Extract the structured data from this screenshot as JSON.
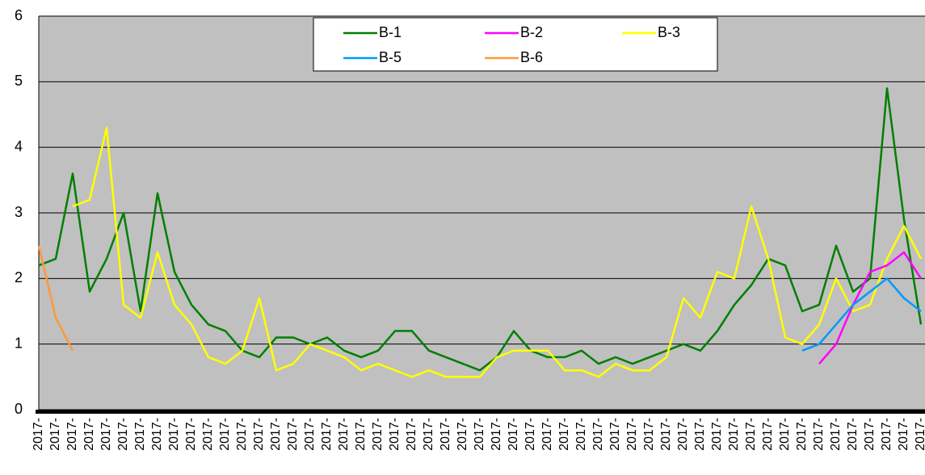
{
  "chart_data": {
    "type": "line",
    "categories": [
      "2017-",
      "2017-",
      "2017-",
      "2017-",
      "2017-",
      "2017-",
      "2017-",
      "2017-",
      "2017-",
      "2017-",
      "2017-",
      "2017-",
      "2017-",
      "2017-",
      "2017-",
      "2017-",
      "2017-",
      "2017-",
      "2017-",
      "2017-",
      "2017-",
      "2017-",
      "2017-",
      "2017-",
      "2017-",
      "2017-",
      "2017-",
      "2017-",
      "2017-",
      "2017-",
      "2017-",
      "2017-",
      "2017-",
      "2017-",
      "2017-",
      "2017-",
      "2017-",
      "2017-",
      "2017-",
      "2017-",
      "2017-",
      "2017-",
      "2017-",
      "2017-",
      "2017-",
      "2017-",
      "2017-",
      "2017-",
      "2017-",
      "2017-",
      "2017-",
      "2017-",
      "2017-"
    ],
    "series": [
      {
        "name": "B-1",
        "color": "#007f00",
        "values": [
          2.2,
          2.3,
          3.6,
          1.8,
          2.3,
          3.0,
          1.5,
          3.3,
          2.1,
          1.6,
          1.3,
          1.2,
          0.9,
          0.8,
          1.1,
          1.1,
          1.0,
          1.1,
          0.9,
          0.8,
          0.9,
          1.2,
          1.2,
          0.9,
          0.8,
          0.7,
          0.6,
          0.8,
          1.2,
          0.9,
          0.8,
          0.8,
          0.9,
          0.7,
          0.8,
          0.7,
          0.8,
          0.9,
          1.0,
          0.9,
          1.2,
          1.6,
          1.9,
          2.3,
          2.2,
          1.5,
          1.6,
          2.5,
          1.8,
          2.0,
          4.9,
          2.9,
          1.3
        ]
      },
      {
        "name": "B-2",
        "color": "#ff00ff",
        "values": [
          null,
          null,
          null,
          null,
          null,
          null,
          null,
          null,
          null,
          null,
          null,
          null,
          null,
          null,
          null,
          null,
          null,
          null,
          null,
          null,
          null,
          null,
          null,
          null,
          null,
          null,
          null,
          null,
          null,
          null,
          null,
          null,
          null,
          null,
          null,
          null,
          null,
          null,
          null,
          null,
          null,
          null,
          null,
          null,
          null,
          null,
          0.7,
          1.0,
          1.6,
          2.1,
          2.2,
          2.4,
          2.0
        ]
      },
      {
        "name": "B-3",
        "color": "#ffff00",
        "values": [
          null,
          null,
          3.1,
          3.2,
          4.3,
          1.6,
          1.4,
          2.4,
          1.6,
          1.3,
          0.8,
          0.7,
          0.9,
          1.7,
          0.6,
          0.7,
          1.0,
          0.9,
          0.8,
          0.6,
          0.7,
          0.6,
          0.5,
          0.6,
          0.5,
          0.5,
          0.5,
          0.8,
          0.9,
          0.9,
          0.9,
          0.6,
          0.6,
          0.5,
          0.7,
          0.6,
          0.6,
          0.8,
          1.7,
          1.4,
          2.1,
          2.0,
          3.1,
          2.3,
          1.1,
          1.0,
          1.3,
          2.0,
          1.5,
          1.6,
          2.3,
          2.8,
          2.3
        ]
      },
      {
        "name": "B-5",
        "color": "#0099ff",
        "values": [
          null,
          null,
          null,
          null,
          null,
          null,
          null,
          null,
          null,
          null,
          null,
          null,
          null,
          null,
          null,
          null,
          null,
          null,
          null,
          null,
          null,
          null,
          null,
          null,
          null,
          null,
          null,
          null,
          null,
          null,
          null,
          null,
          null,
          null,
          null,
          null,
          null,
          null,
          null,
          null,
          null,
          null,
          null,
          null,
          null,
          0.9,
          1.0,
          1.3,
          1.6,
          1.8,
          2.0,
          1.7,
          1.5
        ]
      },
      {
        "name": "B-6",
        "color": "#ff9933",
        "values": [
          2.5,
          1.4,
          0.9,
          null,
          null,
          null,
          null,
          null,
          null,
          null,
          null,
          null,
          null,
          null,
          null,
          null,
          null,
          null,
          null,
          null,
          null,
          null,
          null,
          null,
          null,
          null,
          null,
          null,
          null,
          null,
          null,
          null,
          null,
          null,
          null,
          null,
          null,
          null,
          null,
          null,
          null,
          null,
          null,
          null,
          null,
          null,
          null,
          null,
          null,
          null,
          null,
          null,
          null
        ]
      }
    ],
    "ylim": [
      0,
      6
    ],
    "yticks": [
      0,
      1,
      2,
      3,
      4,
      5,
      6
    ],
    "grid": true,
    "legend": "top"
  }
}
